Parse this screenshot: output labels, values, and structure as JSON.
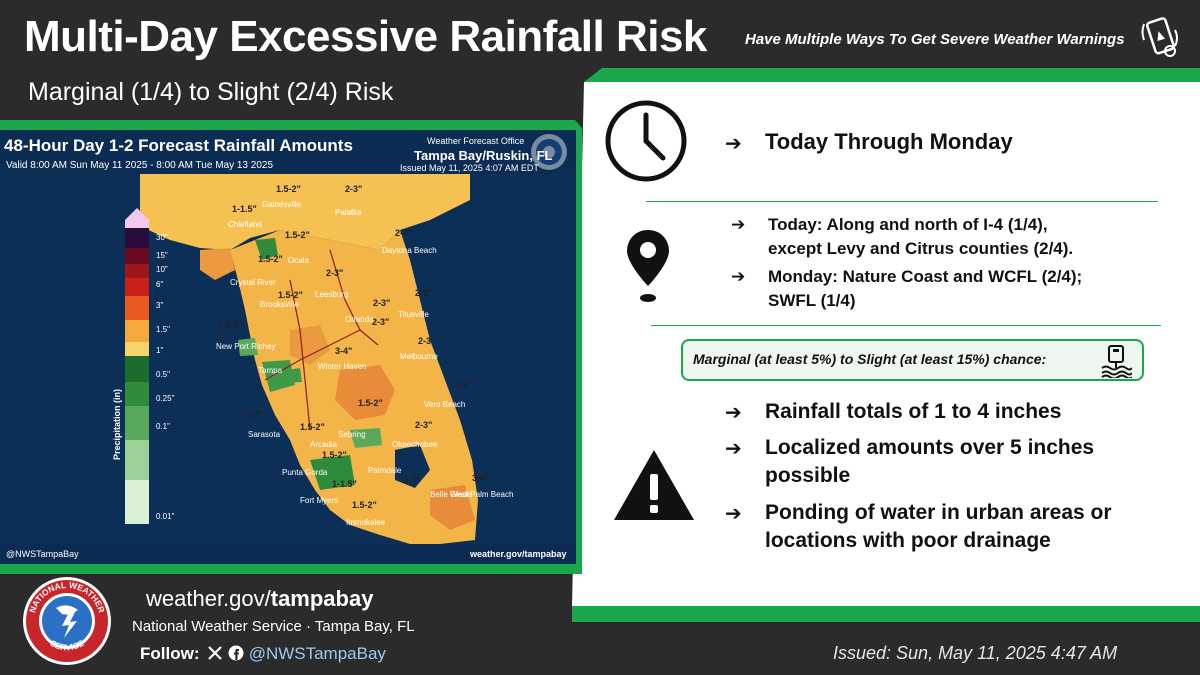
{
  "header": {
    "title": "Multi-Day Excessive Rainfall Risk",
    "subtitle": "Marginal (1/4) to Slight (2/4) Risk",
    "warnings_tagline": "Have Multiple Ways To Get Severe Weather Warnings"
  },
  "map": {
    "title": "48-Hour Day 1-2 Forecast Rainfall Amounts",
    "valid": "Valid 8:00 AM Sun May 11 2025 - 8:00 AM Tue May 13 2025",
    "wfo_line1": "Weather Forecast Office",
    "wfo_line2": "Tampa Bay/Ruskin, FL",
    "wfo_line3": "Issued May 11, 2025 4:07 AM EDT",
    "legend_title": "Precipitation (in)",
    "legend_ticks": [
      "30\"",
      "15\"",
      "10\"",
      "6\"",
      "3\"",
      "1.5\"",
      "1\"",
      "0.5\"",
      "0.25\"",
      "0.1\"",
      "0.01\""
    ],
    "legend_colors": [
      "#f4c7f0",
      "#2a0c3c",
      "#6b0a1f",
      "#c9201a",
      "#e85a1e",
      "#f4a93c",
      "#f7d36b",
      "#1e6b2e",
      "#2f8c3a",
      "#5aa95a",
      "#9ed19a",
      "#d9f0d4"
    ],
    "social_handle": "@NWSTampaBay",
    "site": "weather.gov/tampabay",
    "point_labels": [
      "1.5-2\"",
      "2-3\"",
      "1-1.5\"",
      "1.5-2\"",
      "2-3\"",
      "1.5-2\"",
      "2-3\"",
      "1.5-2\"",
      "2-3\"",
      "2-3\"",
      "2-3\"",
      "1.5-2\"",
      "3-4\"",
      "2-3\"",
      "2-3\"",
      "1.5-2\"",
      "2-3\"",
      "2-3\"",
      "1.5-2\"",
      "1.5-2\"",
      "2-3\"",
      "3-4\"",
      "1-1.5\"",
      "1.5-2\""
    ],
    "cities": [
      "Gainesville",
      "Palatka",
      "Chiefland",
      "Daytona Beach",
      "Ocala",
      "Crystal River",
      "Leesburg",
      "Titusville",
      "Brooksville",
      "Orlando",
      "New Port Richey",
      "Melbourne",
      "Tampa",
      "Winter Haven",
      "Vero Beach",
      "Sebring",
      "Sarasota",
      "Arcadia",
      "Okeechobee",
      "Punta Gorda",
      "Palmdale",
      "Belle Glade",
      "West Palm Beach",
      "Fort Myers",
      "Immokalee"
    ]
  },
  "panel": {
    "timeframe": "Today Through Monday",
    "today_line1": "Today:  Along and north of I-4 (1/4),",
    "today_line2": "except Levy and Citrus counties (2/4).",
    "monday_line1": "Monday: Nature Coast and WCFL (2/4);",
    "monday_line2": "SWFL (1/4)",
    "chance": "Marginal (at least 5%) to Slight (at least 15%) chance:",
    "bullet1": "Rainfall totals of 1 to 4 inches",
    "bullet2_line1": "Localized amounts over 5 inches",
    "bullet2_line2": "possible",
    "bullet3_line1": "Ponding of water in urban areas or",
    "bullet3_line2": "locations with poor drainage",
    "arrow": "➔"
  },
  "footer": {
    "url_prefix": "weather.gov/",
    "url_bold": "tampabay",
    "office": "National Weather Service · Tampa Bay, FL",
    "follow_label": "Follow:",
    "handle": "@NWSTampaBay",
    "issued": "Issued: Sun, May 11, 2025 4:47 AM",
    "logo_text_top": "NATIONAL WEATHER",
    "logo_text_bottom": "SERVICE"
  },
  "colors": {
    "accent_green": "#1aa84b",
    "background": "#2b2b2b",
    "map_navy": "#0b2f57"
  },
  "icons": [
    "phone-alert-icon",
    "clock-icon",
    "location-pin-icon",
    "flood-icon",
    "warning-triangle-icon",
    "x-icon",
    "facebook-icon",
    "nws-logo"
  ]
}
